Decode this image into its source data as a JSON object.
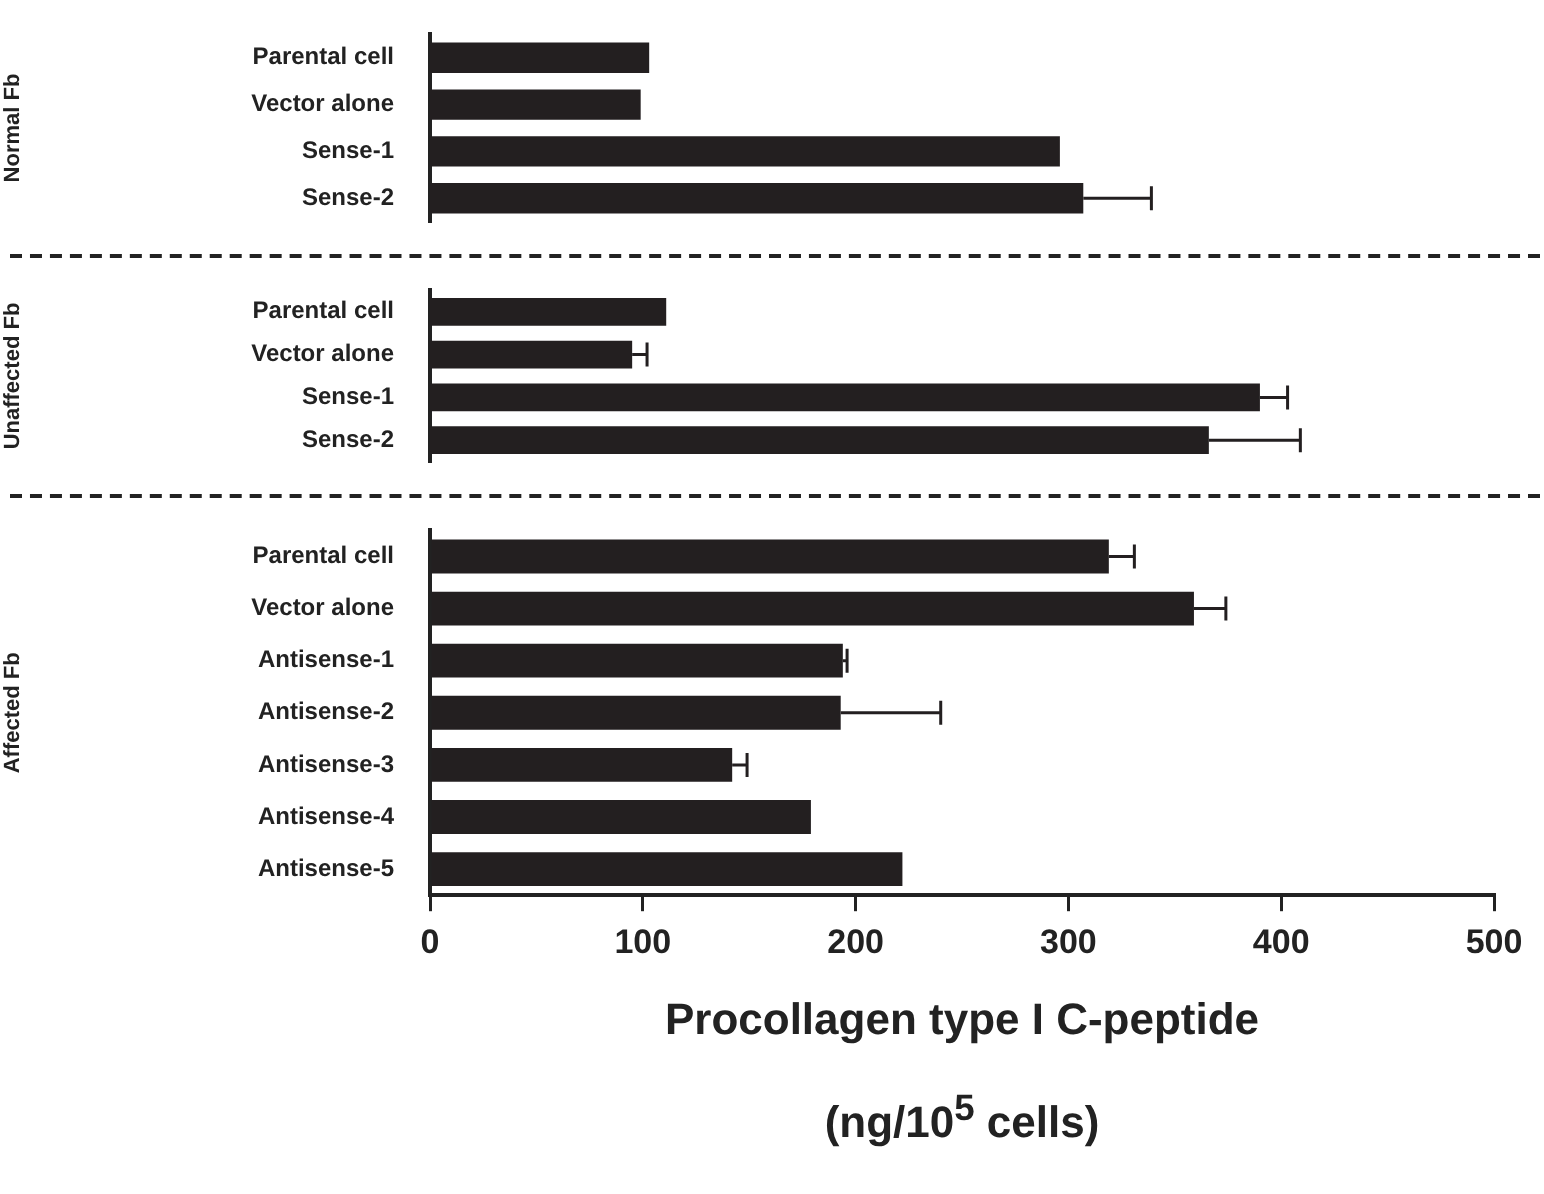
{
  "chart_data": [
    {
      "type": "bar",
      "orientation": "horizontal",
      "ylabel": "Normal Fb",
      "categories": [
        "Parental cell",
        "Vector alone",
        "Sense-1",
        "Sense-2"
      ],
      "values": [
        103,
        99,
        296,
        307
      ],
      "errors": [
        null,
        null,
        null,
        [
          307,
          339
        ]
      ],
      "color": "#231f20",
      "xlim": [
        0,
        500
      ],
      "xticks": [
        0,
        100,
        200,
        300,
        400,
        500
      ],
      "tick_labels": "y",
      "grid": false
    },
    {
      "type": "bar",
      "orientation": "horizontal",
      "ylabel": "Unaffected Fb",
      "categories": [
        "Parental cell",
        "Vector alone",
        "Sense-1",
        "Sense-2"
      ],
      "values": [
        111,
        95,
        390,
        366
      ],
      "errors": [
        null,
        [
          95,
          102
        ],
        [
          390,
          403
        ],
        [
          366,
          409
        ]
      ],
      "color": "#231f20",
      "xlim": [
        0,
        500
      ],
      "xticks": [
        0,
        100,
        200,
        300,
        400,
        500
      ],
      "tick_labels": "y",
      "grid": false
    },
    {
      "type": "bar",
      "orientation": "horizontal",
      "ylabel": "Affected Fb",
      "xlabel": "Procollagen type I C-peptide\n(ng/10$^{5}$ cells)",
      "categories": [
        "Parental cell",
        "Vector alone",
        "Antisense-1",
        "Antisense-2",
        "Antisense-3",
        "Antisense-4",
        "Antisense-5"
      ],
      "values": [
        319,
        359,
        194,
        193,
        142,
        179,
        222
      ],
      "errors": [
        [
          319,
          331
        ],
        [
          359,
          374
        ],
        [
          194,
          196
        ],
        [
          193,
          240
        ],
        [
          142,
          149
        ],
        null,
        null
      ],
      "color": "#231f20",
      "xlim": [
        0,
        500
      ],
      "xticks": [
        0,
        100,
        200,
        300,
        400,
        500
      ],
      "grid": false
    }
  ]
}
